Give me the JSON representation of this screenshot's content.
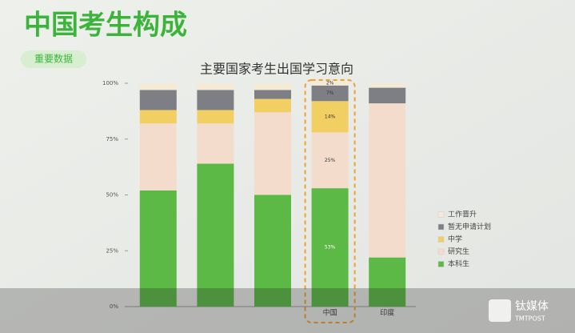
{
  "slide": {
    "title": "中国考生构成",
    "badge": "重要数据"
  },
  "watermark": {
    "name": "钛媒体",
    "latin": "TMTPOST"
  },
  "chart_data": {
    "type": "stacked_bar",
    "title": "主要国家考生出国学习意向",
    "categories": [
      null,
      null,
      null,
      "中国",
      "印度"
    ],
    "ylim": [
      0,
      100
    ],
    "yticks": [
      {
        "value": 0,
        "label": "0%"
      },
      {
        "value": 25,
        "label": "25%"
      },
      {
        "value": 50,
        "label": "50%"
      },
      {
        "value": 75,
        "label": "75%"
      },
      {
        "value": 100,
        "label": "100%"
      }
    ],
    "series": [
      {
        "name": "本科生",
        "color": "#5cb946",
        "values": [
          52,
          64,
          50,
          53,
          22
        ],
        "value_labels": [
          null,
          null,
          null,
          "53%",
          null
        ]
      },
      {
        "name": "研究生",
        "color": "#f3dccb",
        "values": [
          30,
          18,
          37,
          25,
          69
        ],
        "value_labels": [
          null,
          null,
          null,
          "25%",
          null
        ]
      },
      {
        "name": "中学",
        "color": "#f2cf63",
        "values": [
          6,
          6,
          6,
          14,
          0
        ],
        "value_labels": [
          null,
          null,
          null,
          "14%",
          null
        ]
      },
      {
        "name": "暂无申请计划",
        "color": "#7d7f84",
        "values": [
          9,
          9,
          4,
          7,
          7
        ],
        "value_labels": [
          null,
          null,
          null,
          "7%",
          null
        ]
      },
      {
        "name": "工作晋升",
        "color": "#f5ead6",
        "values": [
          3,
          3,
          3,
          2,
          2
        ],
        "value_labels": [
          null,
          null,
          null,
          "2%",
          null
        ]
      }
    ],
    "highlight": "中国"
  }
}
